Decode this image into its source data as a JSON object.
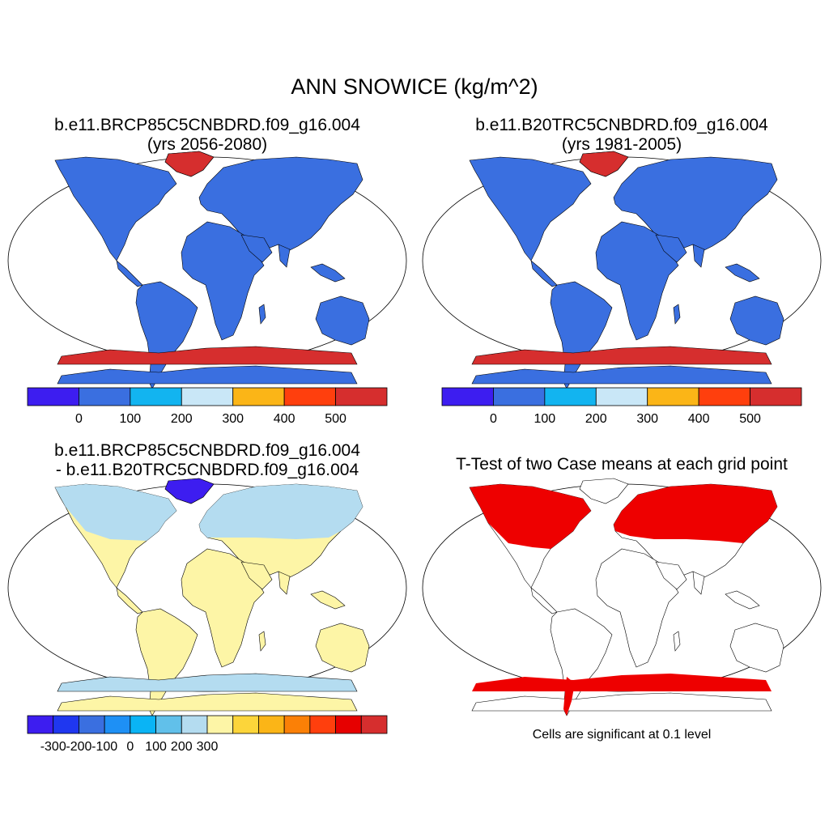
{
  "figure": {
    "title": "ANN SNOWICE (kg/m^2)"
  },
  "panels": {
    "case": {
      "title_line1": "b.e11.BRCP85C5CNBDRD.f09_g16.004",
      "title_line2": "(yrs 2056-2080)"
    },
    "control": {
      "title_line1": "b.e11.B20TRC5CNBDRD.f09_g16.004",
      "title_line2": "(yrs 1981-2005)"
    },
    "difference": {
      "title_line1": "b.e11.BRCP85C5CNBDRD.f09_g16.004",
      "title_line2": "- b.e11.B20TRC5CNBDRD.f09_g16.004"
    },
    "ttest": {
      "title": "T-Test of two Case means at each grid point",
      "note": "Cells are significant at 0.1 level"
    }
  },
  "colors": {
    "land_low": "#3a6fe0",
    "greenland_antarctica": "#d62e2e",
    "significant": "#ee0000",
    "diff_positive": "#fdf5a6",
    "diff_negative": "#b4dcf0",
    "diff_strong_negative": "#3d1df0"
  },
  "colorbars": {
    "snowice": {
      "colors": [
        "#3d1df0",
        "#3a6fe0",
        "#12b4f0",
        "#c9e7f7",
        "#fbb517",
        "#ff3f0d",
        "#d62e2e"
      ],
      "labels": [
        "0",
        "100",
        "200",
        "300",
        "400",
        "500"
      ]
    },
    "difference": {
      "colors": [
        "#3d1df0",
        "#1f37f0",
        "#3a6fe0",
        "#1e90f5",
        "#0ab4f5",
        "#61c0ea",
        "#b4dcf0",
        "#fdf5a6",
        "#fcd53a",
        "#fbb517",
        "#fb8006",
        "#ff3f0d",
        "#e60000",
        "#d62e2e"
      ],
      "labels": [
        "-300",
        "-200",
        "-100",
        "0",
        "100",
        "200",
        "300"
      ]
    }
  }
}
